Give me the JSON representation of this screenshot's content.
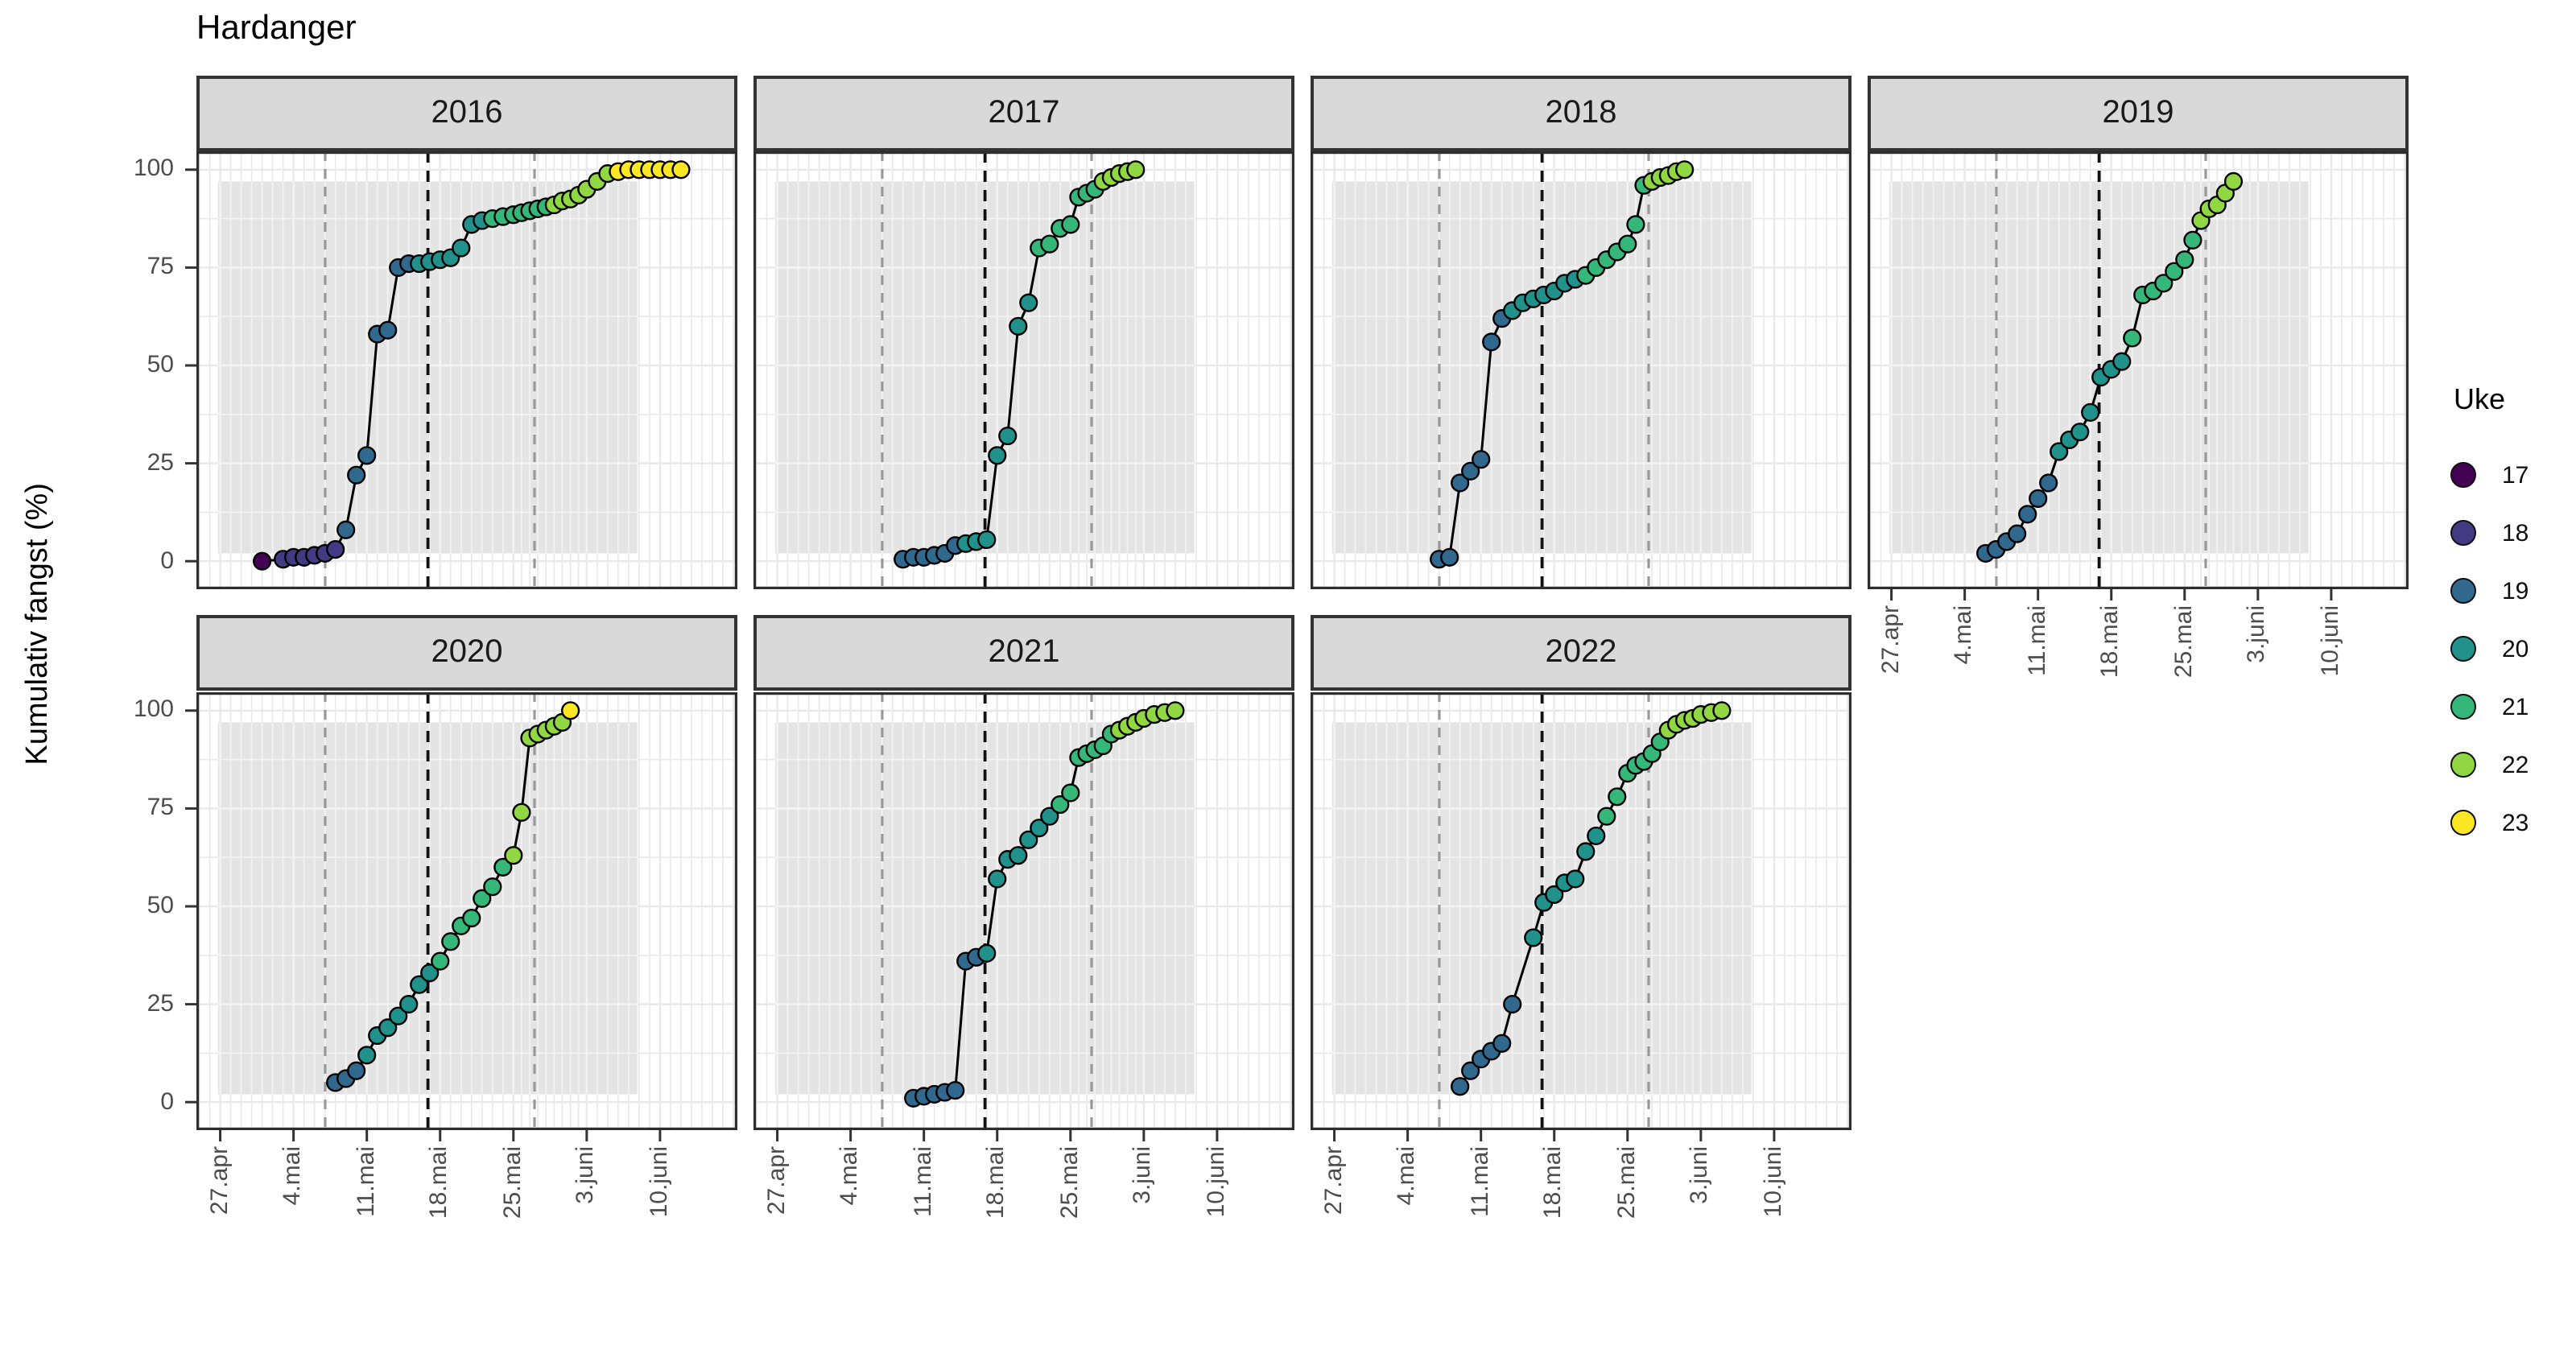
{
  "header": {
    "title": "Hardanger"
  },
  "y_axis": {
    "label": "Kumulativ fangst (%)",
    "ticks": [
      0,
      25,
      50,
      75,
      100
    ]
  },
  "x_axis": {
    "tick_labels": [
      "27.apr",
      "4.mai",
      "11.mai",
      "18.mai",
      "25.mai",
      "3.juni",
      "10.juni"
    ],
    "tick_days": [
      0,
      7,
      14,
      21,
      28,
      37,
      44
    ]
  },
  "legend": {
    "title": "Uke",
    "entries": [
      {
        "week": "17",
        "color": "#440154"
      },
      {
        "week": "18",
        "color": "#443983"
      },
      {
        "week": "19",
        "color": "#31688e"
      },
      {
        "week": "20",
        "color": "#21918c"
      },
      {
        "week": "21",
        "color": "#35b779"
      },
      {
        "week": "22",
        "color": "#90d743"
      },
      {
        "week": "23",
        "color": "#fde725"
      }
    ]
  },
  "colors": {
    "strip_background": "#d9d9d9",
    "panel_background": "#ffffff",
    "shaded_band": "#e4e4e4",
    "grid_on_white": "#e9e9e9",
    "grid_on_band": "#f3f3f3",
    "panel_border": "#2e2e2e",
    "gray_dashed": "#999999",
    "black_dashed": "#111111",
    "line": "#000000",
    "tick_text": "#4d4d4d"
  },
  "chart_data": {
    "type": "line",
    "title": "Hardanger",
    "xlabel": "",
    "ylabel": "Kumulativ fangst (%)",
    "ylim": [
      0,
      100
    ],
    "y_ticks": [
      0,
      25,
      50,
      75,
      100
    ],
    "x_tick_labels": [
      "27.apr",
      "4.mai",
      "11.mai",
      "18.mai",
      "25.mai",
      "3.juni",
      "10.juni"
    ],
    "x_tick_days_from_apr27": [
      0,
      7,
      14,
      21,
      28,
      37,
      44
    ],
    "legend_title": "Uke",
    "week_colors": {
      "17": "#440154",
      "18": "#443983",
      "19": "#31688e",
      "20": "#21918c",
      "21": "#35b779",
      "22": "#90d743",
      "23": "#fde725"
    },
    "reference_lines": {
      "gray_dashed_fracs": [
        0.238,
        0.625
      ],
      "black_dashed_frac": 0.428,
      "note": "gray dashed ~7.mai and ~27.mai, black dashed ~16.mai"
    },
    "shaded_band": {
      "x_start_frac": 0.04,
      "x_end_frac": 0.815,
      "p_bottom": 2,
      "p_top": 97
    },
    "facets": [
      {
        "year": "2016",
        "points": [
          [
            4,
            0,
            17
          ],
          [
            6,
            0.5,
            18
          ],
          [
            7,
            1,
            18
          ],
          [
            8,
            1,
            18
          ],
          [
            9,
            1.5,
            18
          ],
          [
            10,
            2,
            18
          ],
          [
            11,
            3,
            18
          ],
          [
            12,
            8,
            19
          ],
          [
            13,
            22,
            19
          ],
          [
            14,
            27,
            19
          ],
          [
            15,
            58,
            19
          ],
          [
            16,
            59,
            19
          ],
          [
            17,
            75,
            19
          ],
          [
            18,
            76,
            19
          ],
          [
            19,
            76,
            20
          ],
          [
            20,
            76.5,
            20
          ],
          [
            21,
            77,
            20
          ],
          [
            22,
            77.5,
            20
          ],
          [
            23,
            80,
            20
          ],
          [
            24,
            86,
            20
          ],
          [
            25,
            87,
            20
          ],
          [
            26,
            87.5,
            21
          ],
          [
            27,
            88,
            21
          ],
          [
            28,
            88.5,
            21
          ],
          [
            29,
            89,
            21
          ],
          [
            30,
            89.5,
            21
          ],
          [
            31,
            90,
            21
          ],
          [
            32,
            90.5,
            21
          ],
          [
            33,
            91,
            22
          ],
          [
            34,
            92,
            22
          ],
          [
            35,
            92.5,
            22
          ],
          [
            36,
            93.5,
            22
          ],
          [
            37,
            95,
            22
          ],
          [
            38,
            97,
            22
          ],
          [
            39,
            99,
            22
          ],
          [
            40,
            99.5,
            23
          ],
          [
            41,
            100,
            23
          ],
          [
            42,
            100,
            23
          ],
          [
            43,
            100,
            23
          ],
          [
            44,
            100,
            23
          ],
          [
            45,
            100,
            23
          ],
          [
            46,
            100,
            23
          ]
        ]
      },
      {
        "year": "2017",
        "points": [
          [
            12,
            0.5,
            19
          ],
          [
            13,
            1,
            19
          ],
          [
            14,
            1,
            19
          ],
          [
            15,
            1.5,
            19
          ],
          [
            16,
            2,
            19
          ],
          [
            17,
            4,
            19
          ],
          [
            18,
            4.5,
            20
          ],
          [
            19,
            5,
            20
          ],
          [
            20,
            5.5,
            20
          ],
          [
            21,
            27,
            20
          ],
          [
            22,
            32,
            20
          ],
          [
            23,
            60,
            20
          ],
          [
            24,
            66,
            20
          ],
          [
            25,
            80,
            21
          ],
          [
            26,
            81,
            21
          ],
          [
            27,
            85,
            21
          ],
          [
            28,
            86,
            21
          ],
          [
            29,
            93,
            21
          ],
          [
            30,
            94,
            21
          ],
          [
            31,
            95,
            21
          ],
          [
            32,
            97,
            22
          ],
          [
            33,
            98,
            22
          ],
          [
            34,
            99,
            22
          ],
          [
            35,
            99.5,
            22
          ],
          [
            36,
            100,
            22
          ]
        ]
      },
      {
        "year": "2018",
        "points": [
          [
            10,
            0.5,
            19
          ],
          [
            11,
            1,
            19
          ],
          [
            12,
            20,
            19
          ],
          [
            13,
            23,
            19
          ],
          [
            14,
            26,
            19
          ],
          [
            15,
            56,
            19
          ],
          [
            16,
            62,
            19
          ],
          [
            17,
            64,
            20
          ],
          [
            18,
            66,
            20
          ],
          [
            19,
            67,
            20
          ],
          [
            20,
            68,
            20
          ],
          [
            21,
            69,
            20
          ],
          [
            22,
            71,
            20
          ],
          [
            23,
            72,
            20
          ],
          [
            24,
            73,
            21
          ],
          [
            25,
            75,
            21
          ],
          [
            26,
            77,
            21
          ],
          [
            27,
            79,
            21
          ],
          [
            28,
            81,
            21
          ],
          [
            29,
            86,
            21
          ],
          [
            30,
            96,
            21
          ],
          [
            31,
            97,
            22
          ],
          [
            32,
            98,
            22
          ],
          [
            33,
            98.5,
            22
          ],
          [
            34,
            99.5,
            22
          ],
          [
            35,
            100,
            22
          ]
        ]
      },
      {
        "year": "2019",
        "points": [
          [
            9,
            2,
            19
          ],
          [
            10,
            3,
            19
          ],
          [
            11,
            5,
            19
          ],
          [
            12,
            7,
            19
          ],
          [
            13,
            12,
            19
          ],
          [
            14,
            16,
            19
          ],
          [
            15,
            20,
            19
          ],
          [
            16,
            28,
            20
          ],
          [
            17,
            31,
            20
          ],
          [
            18,
            33,
            20
          ],
          [
            19,
            38,
            20
          ],
          [
            20,
            47,
            20
          ],
          [
            21,
            49,
            20
          ],
          [
            22,
            51,
            20
          ],
          [
            23,
            57,
            21
          ],
          [
            24,
            68,
            21
          ],
          [
            25,
            69,
            21
          ],
          [
            26,
            71,
            21
          ],
          [
            27,
            74,
            21
          ],
          [
            28,
            77,
            21
          ],
          [
            29,
            82,
            21
          ],
          [
            30,
            87,
            22
          ],
          [
            31,
            90,
            22
          ],
          [
            32,
            91,
            22
          ],
          [
            33,
            94,
            22
          ],
          [
            34,
            97,
            22
          ]
        ]
      },
      {
        "year": "2020",
        "points": [
          [
            11,
            5,
            19
          ],
          [
            12,
            6,
            19
          ],
          [
            13,
            8,
            19
          ],
          [
            14,
            12,
            20
          ],
          [
            15,
            17,
            20
          ],
          [
            16,
            19,
            20
          ],
          [
            17,
            22,
            20
          ],
          [
            18,
            25,
            20
          ],
          [
            19,
            30,
            20
          ],
          [
            20,
            33,
            20
          ],
          [
            21,
            36,
            21
          ],
          [
            22,
            41,
            21
          ],
          [
            23,
            45,
            21
          ],
          [
            24,
            47,
            21
          ],
          [
            25,
            52,
            21
          ],
          [
            26,
            55,
            21
          ],
          [
            27,
            60,
            21
          ],
          [
            28,
            63,
            22
          ],
          [
            29,
            74,
            22
          ],
          [
            30,
            93,
            22
          ],
          [
            31,
            94,
            22
          ],
          [
            32,
            95,
            22
          ],
          [
            33,
            96,
            22
          ],
          [
            34,
            97,
            22
          ],
          [
            35,
            100,
            23
          ]
        ]
      },
      {
        "year": "2021",
        "points": [
          [
            13,
            1,
            19
          ],
          [
            14,
            1.5,
            19
          ],
          [
            15,
            2,
            19
          ],
          [
            16,
            2.5,
            19
          ],
          [
            17,
            3,
            19
          ],
          [
            18,
            36,
            19
          ],
          [
            19,
            37,
            19
          ],
          [
            20,
            38,
            20
          ],
          [
            21,
            57,
            20
          ],
          [
            22,
            62,
            20
          ],
          [
            23,
            63,
            20
          ],
          [
            24,
            67,
            20
          ],
          [
            25,
            70,
            20
          ],
          [
            26,
            73,
            20
          ],
          [
            27,
            76,
            21
          ],
          [
            28,
            79,
            21
          ],
          [
            29,
            88,
            21
          ],
          [
            30,
            89,
            21
          ],
          [
            31,
            90,
            21
          ],
          [
            32,
            91,
            21
          ],
          [
            33,
            94,
            21
          ],
          [
            34,
            95,
            22
          ],
          [
            35,
            96,
            22
          ],
          [
            36,
            97,
            22
          ],
          [
            37,
            98,
            22
          ],
          [
            38,
            99,
            22
          ],
          [
            39,
            99.5,
            22
          ],
          [
            40,
            100,
            22
          ]
        ]
      },
      {
        "year": "2022",
        "points": [
          [
            12,
            4,
            19
          ],
          [
            13,
            8,
            19
          ],
          [
            14,
            11,
            19
          ],
          [
            15,
            13,
            19
          ],
          [
            16,
            15,
            19
          ],
          [
            17,
            25,
            19
          ],
          [
            19,
            42,
            20
          ],
          [
            20,
            51,
            20
          ],
          [
            21,
            53,
            20
          ],
          [
            22,
            56,
            20
          ],
          [
            23,
            57,
            20
          ],
          [
            24,
            64,
            20
          ],
          [
            25,
            68,
            20
          ],
          [
            26,
            73,
            21
          ],
          [
            27,
            78,
            21
          ],
          [
            28,
            84,
            21
          ],
          [
            29,
            86,
            21
          ],
          [
            30,
            87,
            21
          ],
          [
            31,
            89,
            21
          ],
          [
            32,
            92,
            21
          ],
          [
            33,
            95,
            22
          ],
          [
            34,
            96.5,
            22
          ],
          [
            35,
            97.5,
            22
          ],
          [
            36,
            98,
            22
          ],
          [
            37,
            99,
            22
          ],
          [
            38,
            99.5,
            22
          ],
          [
            39,
            100,
            22
          ]
        ]
      }
    ]
  }
}
